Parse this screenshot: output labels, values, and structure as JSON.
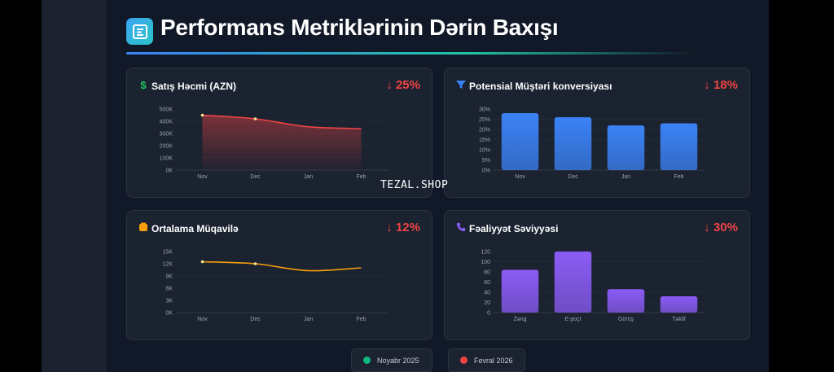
{
  "header": {
    "title": "Performans Metriklərinin Dərin Baxışı"
  },
  "watermark": "TEZAL.SHOP",
  "cards": [
    {
      "title": "Satış Həcmi (AZN)",
      "icon": "dollar-icon",
      "icon_color": "#22c55e",
      "change": "↓ 25%"
    },
    {
      "title": "Potensial Müştəri konversiyası",
      "icon": "funnel-icon",
      "icon_color": "#3b82f6",
      "change": "↓ 18%"
    },
    {
      "title": "Ortalama Müqavilə",
      "icon": "wallet-icon",
      "icon_color": "#f59e0b",
      "change": "↓ 12%"
    },
    {
      "title": "Fəaliyyət Səviyyəsi",
      "icon": "phone-icon",
      "icon_color": "#8b5cf6",
      "change": "↓ 30%"
    }
  ],
  "legend": [
    {
      "label": "Noyabr 2025",
      "color": "#10b981"
    },
    {
      "label": "Fevral 2026",
      "color": "#ef4444"
    }
  ],
  "chart_data": [
    {
      "type": "area",
      "categories": [
        "Nov",
        "Dec",
        "Jan",
        "Feb"
      ],
      "values": [
        450000,
        420000,
        355000,
        340000
      ],
      "ylim": [
        0,
        500000
      ],
      "yticks": [
        "0K",
        "100K",
        "200K",
        "300K",
        "400K",
        "500K"
      ],
      "color": "#ef4444",
      "grid": true
    },
    {
      "type": "bar",
      "categories": [
        "Nov",
        "Dec",
        "Jan",
        "Feb"
      ],
      "values": [
        28,
        26,
        22,
        23
      ],
      "ylim": [
        0,
        30
      ],
      "yticks": [
        "0%",
        "5%",
        "10%",
        "15%",
        "20%",
        "25%",
        "30%"
      ],
      "color": "#3b82f6",
      "grid": true
    },
    {
      "type": "line",
      "categories": [
        "Nov",
        "Dec",
        "Jan",
        "Feb"
      ],
      "values": [
        12500,
        12000,
        10300,
        11000
      ],
      "ylim": [
        0,
        15000
      ],
      "yticks": [
        "0K",
        "3K",
        "6K",
        "9K",
        "12K",
        "15K"
      ],
      "color": "#f59e0b",
      "grid": true
    },
    {
      "type": "bar",
      "categories": [
        "Zəng",
        "E-poçt",
        "Görüş",
        "Təklif"
      ],
      "values": [
        84,
        120,
        46,
        32
      ],
      "ylim": [
        0,
        120
      ],
      "yticks": [
        "0",
        "20",
        "40",
        "60",
        "80",
        "100",
        "120"
      ],
      "color": "#8b5cf6",
      "grid": true
    }
  ]
}
